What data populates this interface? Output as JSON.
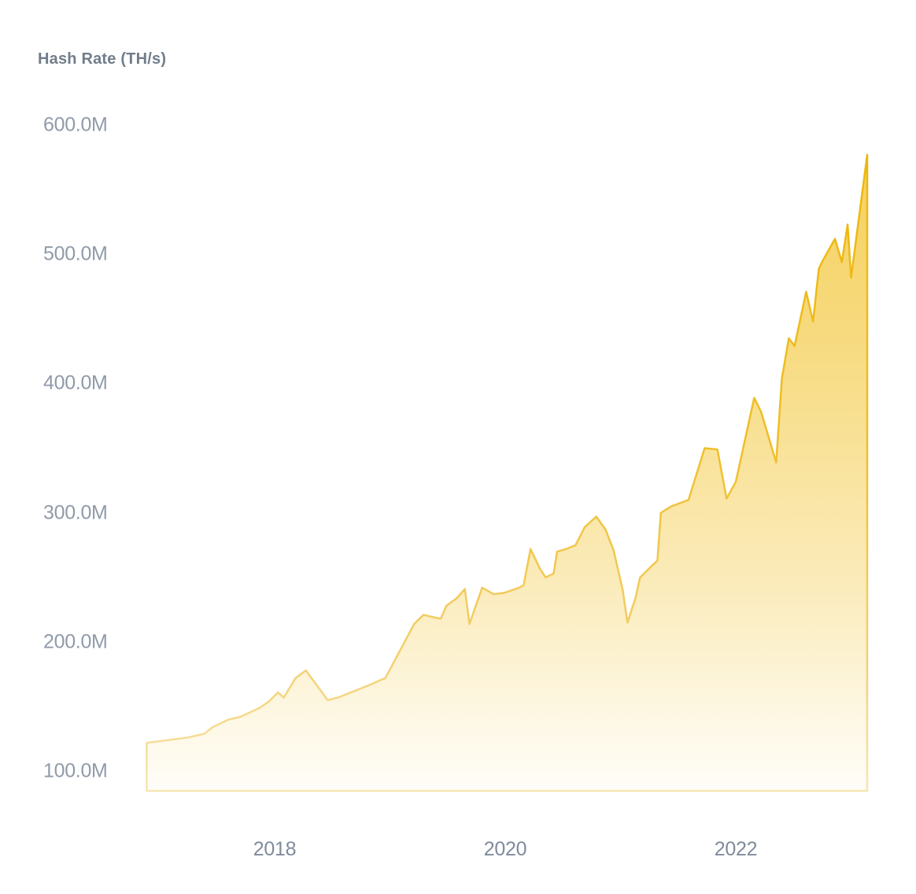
{
  "chart": {
    "title": "Hash Rate (TH/s)"
  },
  "chart_data": {
    "type": "area",
    "title": "Hash Rate (TH/s)",
    "xlabel": "",
    "ylabel": "Hash Rate (TH/s)",
    "grid": false,
    "legend": false,
    "x_unit": "year (fractional)",
    "y_value_unit": "millions of TH/s",
    "ylim_m": [
      100,
      600
    ],
    "xlim_years": [
      2016.87,
      2023.16
    ],
    "colors": {
      "line": "#F0B90B",
      "line_low_value": "#F6E2A6",
      "fill_top": "rgba(240,185,11,0.66)",
      "fill_bottom": "rgba(240,185,11,0.03)",
      "title_text": "#717D8A",
      "y_tick_text": "#909BA9",
      "x_tick_text": "#7F8B9B",
      "background": "#FFFFFF"
    },
    "y_ticks": [
      {
        "label": "600.0M",
        "value_m": 600
      },
      {
        "label": "500.0M",
        "value_m": 500
      },
      {
        "label": "400.0M",
        "value_m": 400
      },
      {
        "label": "300.0M",
        "value_m": 300
      },
      {
        "label": "200.0M",
        "value_m": 200
      },
      {
        "label": "100.0M",
        "value_m": 100
      }
    ],
    "x_ticks": [
      {
        "label": "2018",
        "year": 2018
      },
      {
        "label": "2020",
        "year": 2020
      },
      {
        "label": "2022",
        "year": 2022
      }
    ],
    "points": [
      [
        2016.89,
        122
      ],
      [
        2016.98,
        123
      ],
      [
        2017.24,
        126
      ],
      [
        2017.39,
        129
      ],
      [
        2017.46,
        134
      ],
      [
        2017.6,
        140
      ],
      [
        2017.7,
        142
      ],
      [
        2017.87,
        149
      ],
      [
        2017.95,
        154
      ],
      [
        2018.03,
        161
      ],
      [
        2018.08,
        157
      ],
      [
        2018.18,
        172
      ],
      [
        2018.27,
        178
      ],
      [
        2018.37,
        166
      ],
      [
        2018.46,
        155
      ],
      [
        2018.55,
        157
      ],
      [
        2018.69,
        162
      ],
      [
        2018.83,
        167
      ],
      [
        2018.93,
        171
      ],
      [
        2018.96,
        172
      ],
      [
        2019.21,
        214
      ],
      [
        2019.29,
        221
      ],
      [
        2019.39,
        219
      ],
      [
        2019.44,
        218
      ],
      [
        2019.49,
        228
      ],
      [
        2019.58,
        234
      ],
      [
        2019.65,
        241
      ],
      [
        2019.69,
        214
      ],
      [
        2019.8,
        242
      ],
      [
        2019.9,
        237
      ],
      [
        2019.99,
        238
      ],
      [
        2020.12,
        242
      ],
      [
        2020.16,
        244
      ],
      [
        2020.22,
        272
      ],
      [
        2020.3,
        257
      ],
      [
        2020.35,
        250
      ],
      [
        2020.42,
        253
      ],
      [
        2020.45,
        270
      ],
      [
        2020.53,
        272
      ],
      [
        2020.61,
        275
      ],
      [
        2020.69,
        289
      ],
      [
        2020.79,
        297
      ],
      [
        2020.87,
        287
      ],
      [
        2020.94,
        271
      ],
      [
        2021.02,
        240
      ],
      [
        2021.06,
        215
      ],
      [
        2021.13,
        234
      ],
      [
        2021.17,
        250
      ],
      [
        2021.26,
        258
      ],
      [
        2021.32,
        263
      ],
      [
        2021.35,
        300
      ],
      [
        2021.44,
        305
      ],
      [
        2021.59,
        310
      ],
      [
        2021.73,
        350
      ],
      [
        2021.84,
        349
      ],
      [
        2021.92,
        311
      ],
      [
        2022.0,
        324
      ],
      [
        2022.16,
        389
      ],
      [
        2022.22,
        378
      ],
      [
        2022.35,
        339
      ],
      [
        2022.4,
        404
      ],
      [
        2022.46,
        435
      ],
      [
        2022.51,
        429
      ],
      [
        2022.61,
        471
      ],
      [
        2022.67,
        448
      ],
      [
        2022.72,
        489
      ],
      [
        2022.76,
        496
      ],
      [
        2022.86,
        512
      ],
      [
        2022.92,
        494
      ],
      [
        2022.97,
        523
      ],
      [
        2023.0,
        482
      ],
      [
        2023.14,
        577
      ]
    ]
  }
}
